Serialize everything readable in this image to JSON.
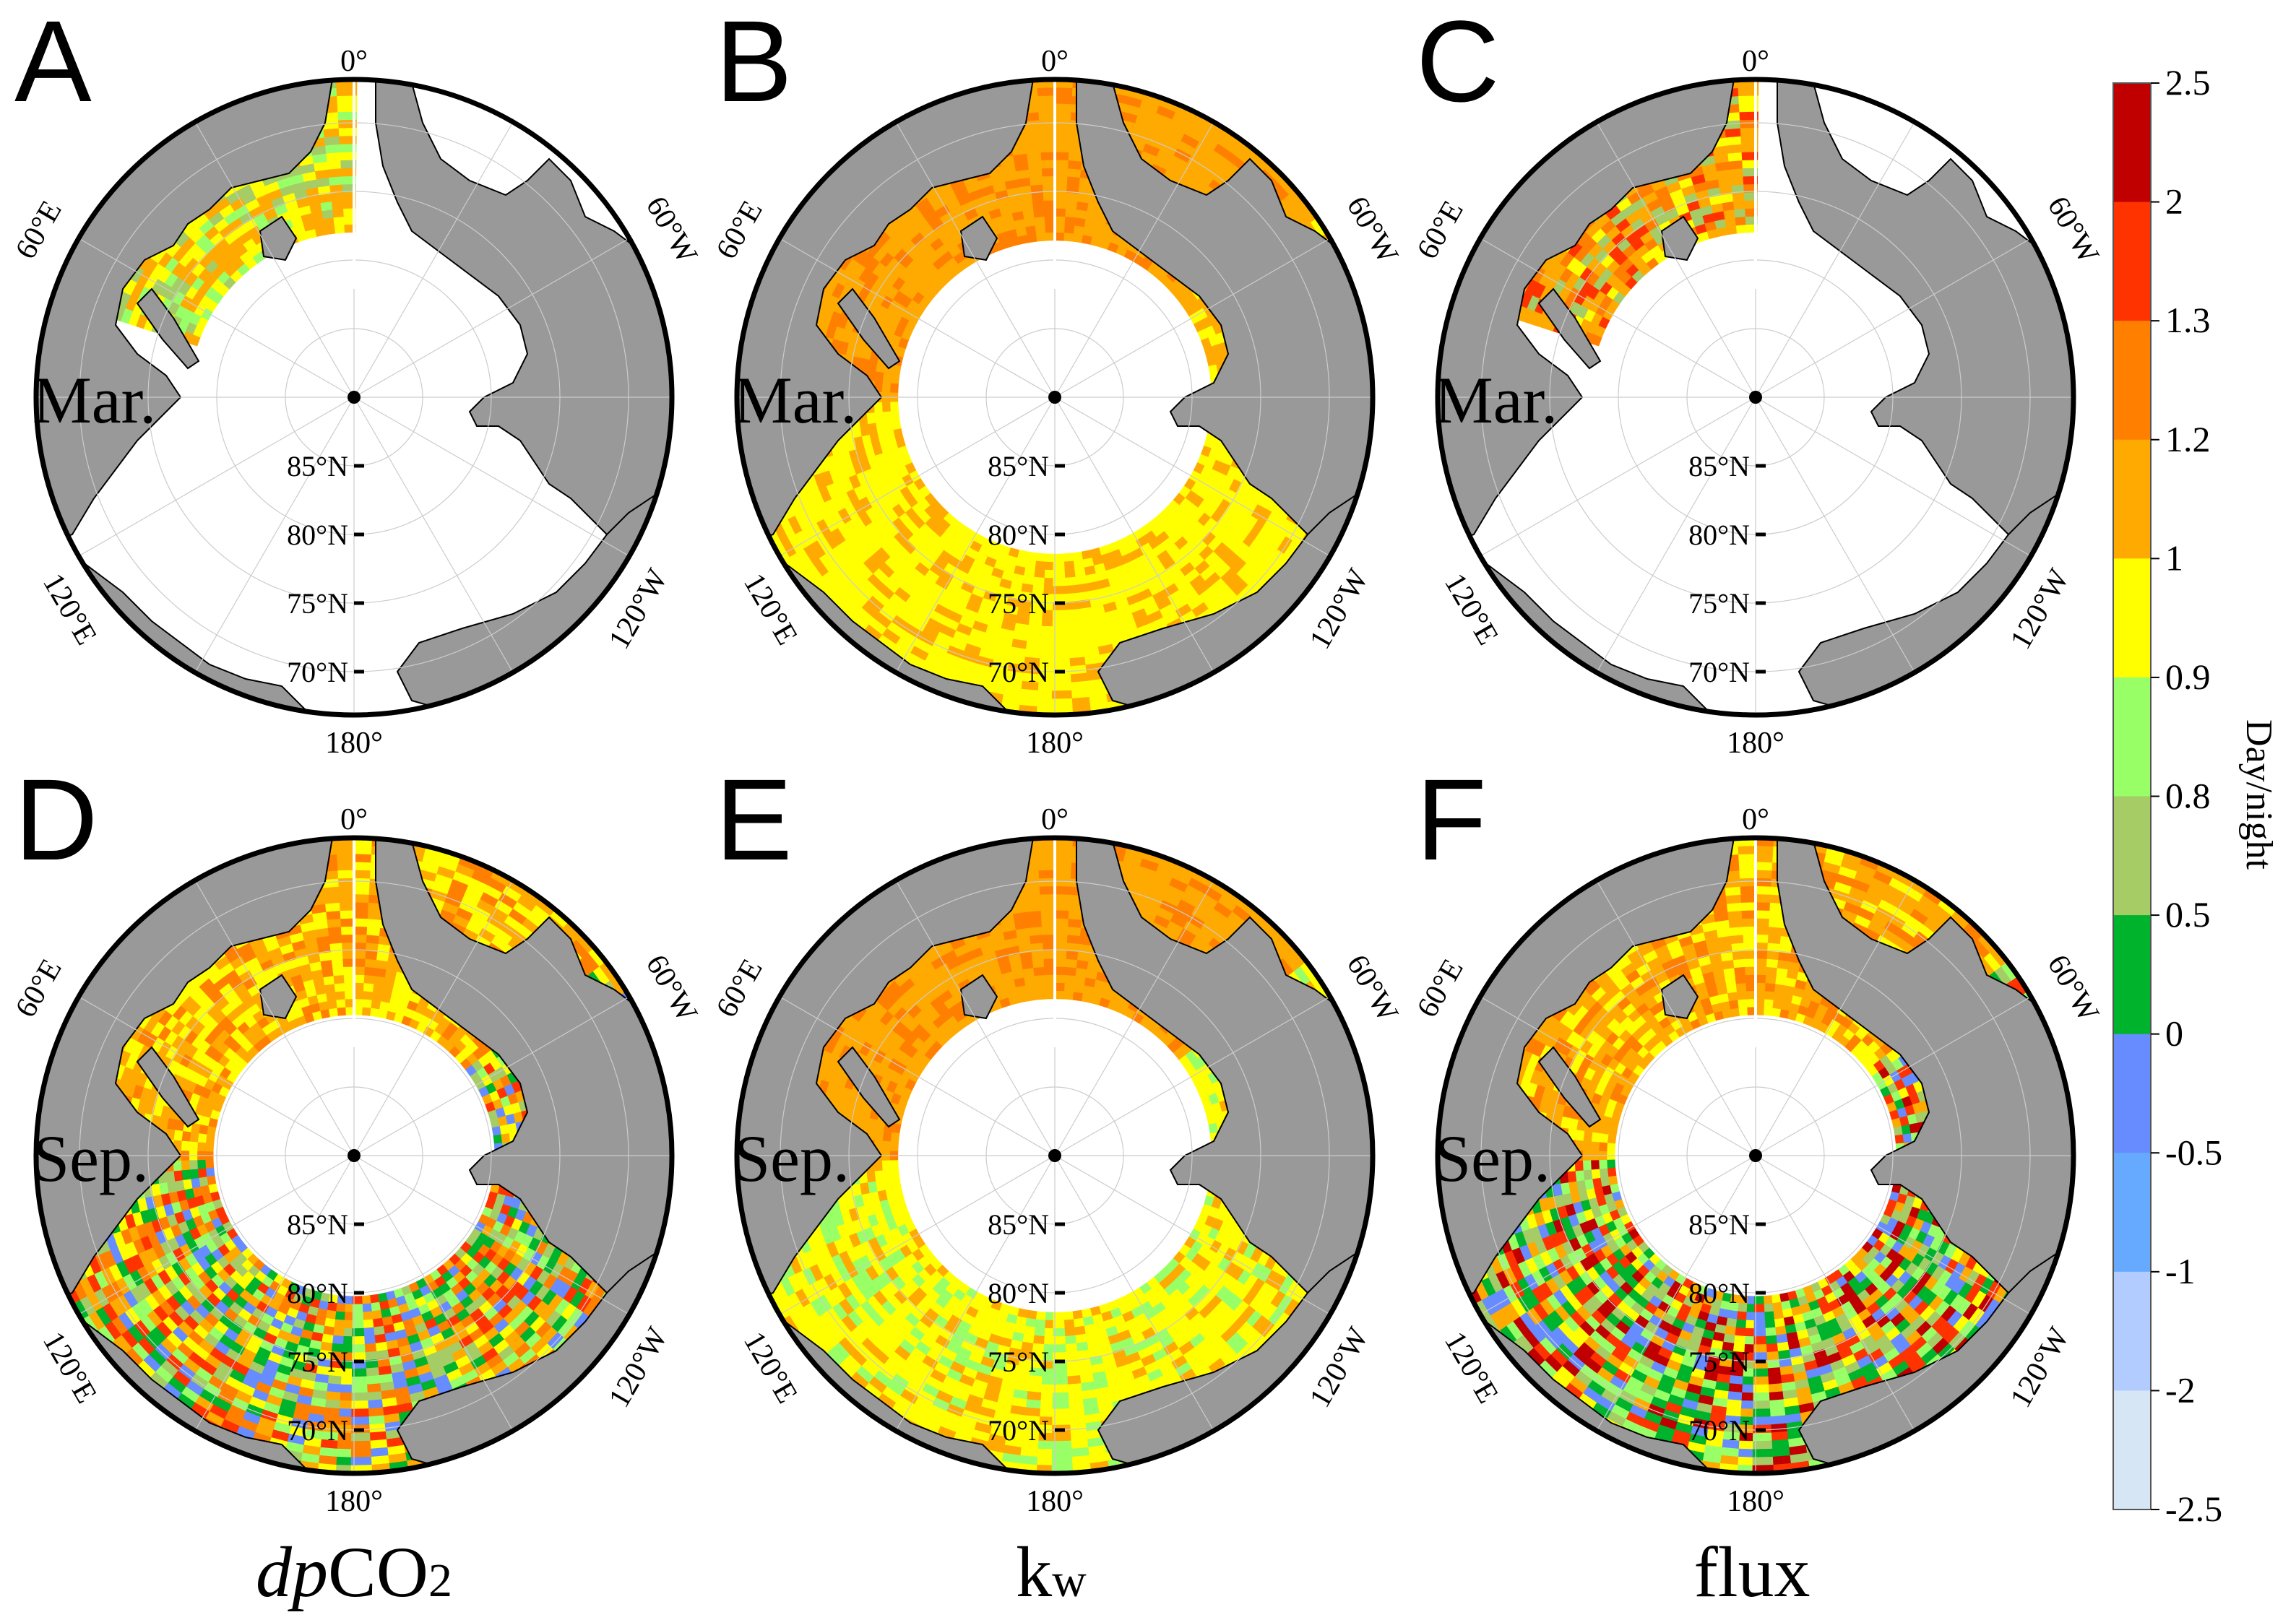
{
  "panels": [
    {
      "letter": "A",
      "month": "Mar.",
      "variable": "dpCO2",
      "pattern": "mar_sparse"
    },
    {
      "letter": "B",
      "month": "Mar.",
      "variable": "kw",
      "pattern": "mar_kw"
    },
    {
      "letter": "C",
      "month": "Mar.",
      "variable": "flux",
      "pattern": "mar_sparse_flux"
    },
    {
      "letter": "D",
      "month": "Sep.",
      "variable": "dpCO2",
      "pattern": "sep_mixed"
    },
    {
      "letter": "E",
      "month": "Sep.",
      "variable": "kw",
      "pattern": "sep_kw"
    },
    {
      "letter": "F",
      "month": "Sep.",
      "variable": "flux",
      "pattern": "sep_mixed_flux"
    }
  ],
  "lon_labels": {
    "top": "0°",
    "bottom": "180°",
    "left_upper": "60°E",
    "left_lower": "120°E",
    "right_upper": "60°W",
    "right_lower": "120°W"
  },
  "lat_labels": [
    "85°N",
    "80°N",
    "75°N",
    "70°N"
  ],
  "column_labels": {
    "col1": {
      "italic": "dp",
      "rest": "CO",
      "sub": "2"
    },
    "col2": {
      "main": "k",
      "sub": "w"
    },
    "col3": {
      "main": "flux"
    }
  },
  "colorbar": {
    "title": "Day/night",
    "ticks": [
      "2.5",
      "2",
      "1.3",
      "1.2",
      "1",
      "0.9",
      "0.8",
      "0.5",
      "0",
      "-0.5",
      "-1",
      "-2",
      "-2.5"
    ],
    "bins": [
      {
        "low": 2,
        "high": 2.5,
        "color": "#c00000"
      },
      {
        "low": 1.3,
        "high": 2,
        "color": "#ff3300"
      },
      {
        "low": 1.2,
        "high": 1.3,
        "color": "#ff8000"
      },
      {
        "low": 1,
        "high": 1.2,
        "color": "#ffaa00"
      },
      {
        "low": 0.9,
        "high": 1,
        "color": "#ffff00"
      },
      {
        "low": 0.8,
        "high": 0.9,
        "color": "#99ff66"
      },
      {
        "low": 0.5,
        "high": 0.8,
        "color": "#a6cc66"
      },
      {
        "low": 0,
        "high": 0.5,
        "color": "#00b32d"
      },
      {
        "low": -0.5,
        "high": 0,
        "color": "#668cff"
      },
      {
        "low": -1,
        "high": -0.5,
        "color": "#66aaff"
      },
      {
        "low": -2,
        "high": -1,
        "color": "#b3ccff"
      },
      {
        "low": -2.5,
        "high": -2,
        "color": "#d6e6f5"
      }
    ]
  },
  "colors": {
    "land": "#999999",
    "ice": "#ffffff",
    "frame": "#000000"
  }
}
